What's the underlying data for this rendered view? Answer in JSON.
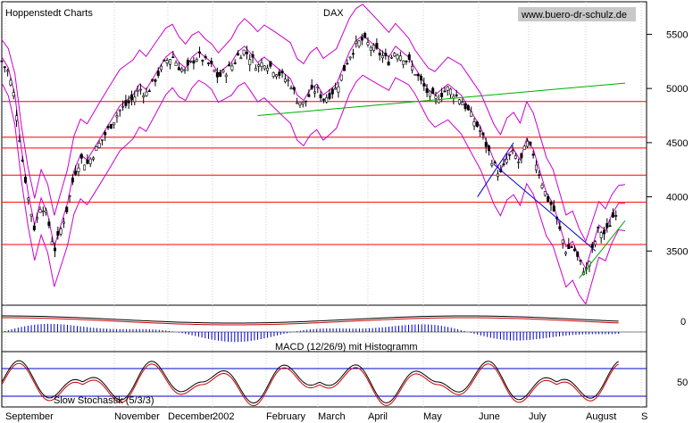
{
  "header": {
    "left": "Hoppenstedt Charts",
    "title": "DAX",
    "url": "www.buero-dr-schulz.de"
  },
  "chart_data": {
    "type": "candlestick",
    "title": "DAX",
    "y_ticks": [
      3500,
      4000,
      4500,
      5000,
      5500
    ],
    "y_range": [
      3000,
      5800
    ],
    "x_labels": [
      "September",
      "November",
      "December",
      "2002",
      "February",
      "March",
      "April",
      "May",
      "June",
      "July",
      "August",
      "S"
    ],
    "series": [
      {
        "name": "upper band",
        "color": "#cc00cc"
      },
      {
        "name": "lower band",
        "color": "#cc00cc"
      },
      {
        "name": "moving average",
        "color": "#cc00cc"
      }
    ],
    "close_path": [
      [
        0,
        5250
      ],
      [
        4,
        5150
      ],
      [
        8,
        4900
      ],
      [
        12,
        4400
      ],
      [
        16,
        4000
      ],
      [
        20,
        3700
      ],
      [
        24,
        3950
      ],
      [
        28,
        3800
      ],
      [
        32,
        3500
      ],
      [
        36,
        3700
      ],
      [
        40,
        3900
      ],
      [
        44,
        4200
      ],
      [
        48,
        4350
      ],
      [
        52,
        4300
      ],
      [
        56,
        4400
      ],
      [
        60,
        4500
      ],
      [
        64,
        4600
      ],
      [
        68,
        4700
      ],
      [
        72,
        4800
      ],
      [
        76,
        4850
      ],
      [
        80,
        4900
      ],
      [
        84,
        5000
      ],
      [
        88,
        4950
      ],
      [
        92,
        5050
      ],
      [
        96,
        5150
      ],
      [
        100,
        5250
      ],
      [
        104,
        5300
      ],
      [
        108,
        5200
      ],
      [
        112,
        5150
      ],
      [
        116,
        5250
      ],
      [
        120,
        5300
      ],
      [
        124,
        5250
      ],
      [
        128,
        5200
      ],
      [
        132,
        5100
      ],
      [
        136,
        5150
      ],
      [
        140,
        5200
      ],
      [
        144,
        5300
      ],
      [
        148,
        5350
      ],
      [
        152,
        5280
      ],
      [
        156,
        5200
      ],
      [
        160,
        5250
      ],
      [
        164,
        5200
      ],
      [
        168,
        5150
      ],
      [
        172,
        5100
      ],
      [
        176,
        5050
      ],
      [
        180,
        4900
      ],
      [
        184,
        4850
      ],
      [
        188,
        4950
      ],
      [
        192,
        5000
      ],
      [
        196,
        4900
      ],
      [
        200,
        4950
      ],
      [
        204,
        5000
      ],
      [
        208,
        5150
      ],
      [
        212,
        5300
      ],
      [
        216,
        5400
      ],
      [
        220,
        5450
      ],
      [
        224,
        5400
      ],
      [
        228,
        5350
      ],
      [
        232,
        5300
      ],
      [
        236,
        5250
      ],
      [
        240,
        5350
      ],
      [
        244,
        5300
      ],
      [
        248,
        5250
      ],
      [
        252,
        5150
      ],
      [
        256,
        5050
      ],
      [
        260,
        4950
      ],
      [
        264,
        4900
      ],
      [
        268,
        4950
      ],
      [
        272,
        5000
      ],
      [
        276,
        4950
      ],
      [
        280,
        4900
      ],
      [
        284,
        4800
      ],
      [
        288,
        4700
      ],
      [
        292,
        4600
      ],
      [
        296,
        4450
      ],
      [
        300,
        4300
      ],
      [
        304,
        4200
      ],
      [
        308,
        4350
      ],
      [
        312,
        4400
      ],
      [
        316,
        4300
      ],
      [
        320,
        4500
      ],
      [
        324,
        4400
      ],
      [
        328,
        4200
      ],
      [
        332,
        4000
      ],
      [
        336,
        3900
      ],
      [
        340,
        3700
      ],
      [
        344,
        3500
      ],
      [
        348,
        3550
      ],
      [
        352,
        3400
      ],
      [
        356,
        3300
      ],
      [
        360,
        3500
      ],
      [
        364,
        3700
      ],
      [
        368,
        3650
      ],
      [
        372,
        3800
      ],
      [
        376,
        3900
      ]
    ],
    "horizontal_lines": [
      4880,
      4550,
      4450,
      4200,
      3950,
      3560
    ],
    "trendlines": [
      {
        "from": [
          156,
          4750
        ],
        "to": [
          380,
          5050
        ],
        "color": "#00aa00"
      }
    ],
    "macd": {
      "label": "MACD (12/26/9) mit Histogramm",
      "tick": "0"
    },
    "stochastic": {
      "label": "Slow Stochastik (5/3/3)",
      "tick": "50",
      "bands": [
        20,
        80
      ]
    }
  }
}
